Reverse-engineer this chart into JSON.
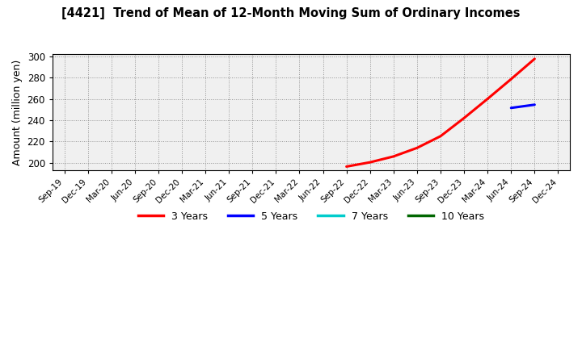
{
  "title": "[4421]  Trend of Mean of 12-Month Moving Sum of Ordinary Incomes",
  "ylabel": "Amount (million yen)",
  "ylim": [
    193,
    302
  ],
  "yticks": [
    200,
    220,
    240,
    260,
    280,
    300
  ],
  "background_color": "#ffffff",
  "plot_bg_color": "#f0f0f0",
  "grid_color": "#888888",
  "series": {
    "3years": {
      "color": "#ff0000",
      "linewidth": 2.2,
      "label": "3 Years",
      "points": [
        [
          "Sep-22",
          196.5
        ],
        [
          "Dec-22",
          200.5
        ],
        [
          "Mar-23",
          206.0
        ],
        [
          "Jun-23",
          214.0
        ],
        [
          "Sep-23",
          225.0
        ],
        [
          "Dec-23",
          242.0
        ],
        [
          "Mar-24",
          260.0
        ],
        [
          "Jun-24",
          278.5
        ],
        [
          "Sep-24",
          297.5
        ]
      ]
    },
    "5years": {
      "color": "#0000ff",
      "linewidth": 2.2,
      "label": "5 Years",
      "points": [
        [
          "Jun-24",
          251.5
        ],
        [
          "Sep-24",
          254.5
        ]
      ]
    },
    "7years": {
      "color": "#00cccc",
      "linewidth": 2.2,
      "label": "7 Years",
      "points": []
    },
    "10years": {
      "color": "#006600",
      "linewidth": 2.2,
      "label": "10 Years",
      "points": []
    }
  },
  "x_labels": [
    "Sep-19",
    "Dec-19",
    "Mar-20",
    "Jun-20",
    "Sep-20",
    "Dec-20",
    "Mar-21",
    "Jun-21",
    "Sep-21",
    "Dec-21",
    "Mar-22",
    "Jun-22",
    "Sep-22",
    "Dec-22",
    "Mar-23",
    "Jun-23",
    "Sep-23",
    "Dec-23",
    "Mar-24",
    "Jun-24",
    "Sep-24",
    "Dec-24"
  ],
  "legend_items": [
    {
      "label": "3 Years",
      "color": "#ff0000"
    },
    {
      "label": "5 Years",
      "color": "#0000ff"
    },
    {
      "label": "7 Years",
      "color": "#00cccc"
    },
    {
      "label": "10 Years",
      "color": "#006600"
    }
  ]
}
